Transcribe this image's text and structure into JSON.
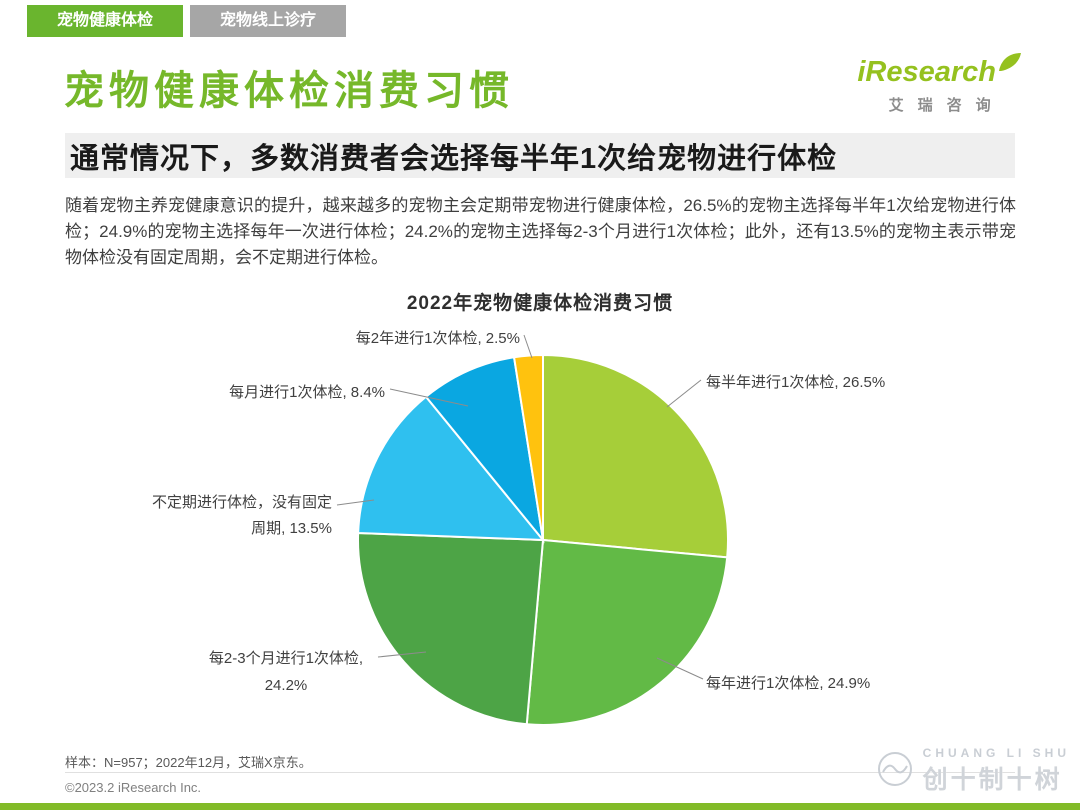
{
  "tabs": [
    {
      "label": "宠物健康体检",
      "active": true
    },
    {
      "label": "宠物线上诊疗",
      "active": false
    }
  ],
  "logo": {
    "brand": "iResearch",
    "chinese": "艾瑞咨询"
  },
  "header": {
    "title": "宠物健康体检消费习惯",
    "subtitle": "通常情况下，多数消费者会选择每半年1次给宠物进行体检"
  },
  "body": {
    "paragraph": "随着宠物主养宠健康意识的提升，越来越多的宠物主会定期带宠物进行健康体检，26.5%的宠物主选择每半年1次给宠物进行体检；24.9%的宠物主选择每年一次进行体检；24.2%的宠物主选择每2-3个月进行1次体检；此外，还有13.5%的宠物主表示带宠物体检没有固定周期，会不定期进行体检。"
  },
  "chart_data": {
    "type": "pie",
    "title": "2022年宠物健康体检消费习惯",
    "unit": "%",
    "start_angle_deg": 0,
    "direction": "clockwise",
    "slices": [
      {
        "label": "每半年进行1次体检",
        "value": 26.5,
        "color": "#a6ce39"
      },
      {
        "label": "每年进行1次体检",
        "value": 24.9,
        "color": "#62ba46"
      },
      {
        "label": "每2-3个月进行1次体检",
        "value": 24.2,
        "color": "#4da446"
      },
      {
        "label": "不定期进行体检，没有固定周期",
        "value": 13.5,
        "color": "#2fc0ef"
      },
      {
        "label": "每月进行1次体检",
        "value": 8.4,
        "color": "#0aa7e1"
      },
      {
        "label": "每2年进行1次体检",
        "value": 2.5,
        "color": "#ffc20e"
      }
    ],
    "callouts": {
      "two_years": "每2年进行1次体检, 2.5%",
      "half_year": "每半年进行1次体检, 26.5%",
      "monthly": "每月进行1次体检, 8.4%",
      "irregular_line1": "不定期进行体检，没有固定",
      "irregular_line2": "周期, 13.5%",
      "two_three_line1": "每2-3个月进行1次体检,",
      "two_three_line2": "24.2%",
      "yearly": "每年进行1次体检, 24.9%"
    }
  },
  "footer": {
    "sample_note": "样本：N=957；2022年12月，艾瑞X京东。",
    "copyright": "©2023.2 iResearch Inc."
  },
  "watermark": {
    "line1": "CHUANG LI SHU",
    "line2": "创十制十树"
  },
  "theme": {
    "accent_green": "#76b82a",
    "tab_green": "#6ab52e",
    "tab_gray": "#a6a6a6",
    "subtitle_bg": "#efefef",
    "bottom_bar_green": "#82bb28",
    "logo_green": "#95c11f"
  }
}
